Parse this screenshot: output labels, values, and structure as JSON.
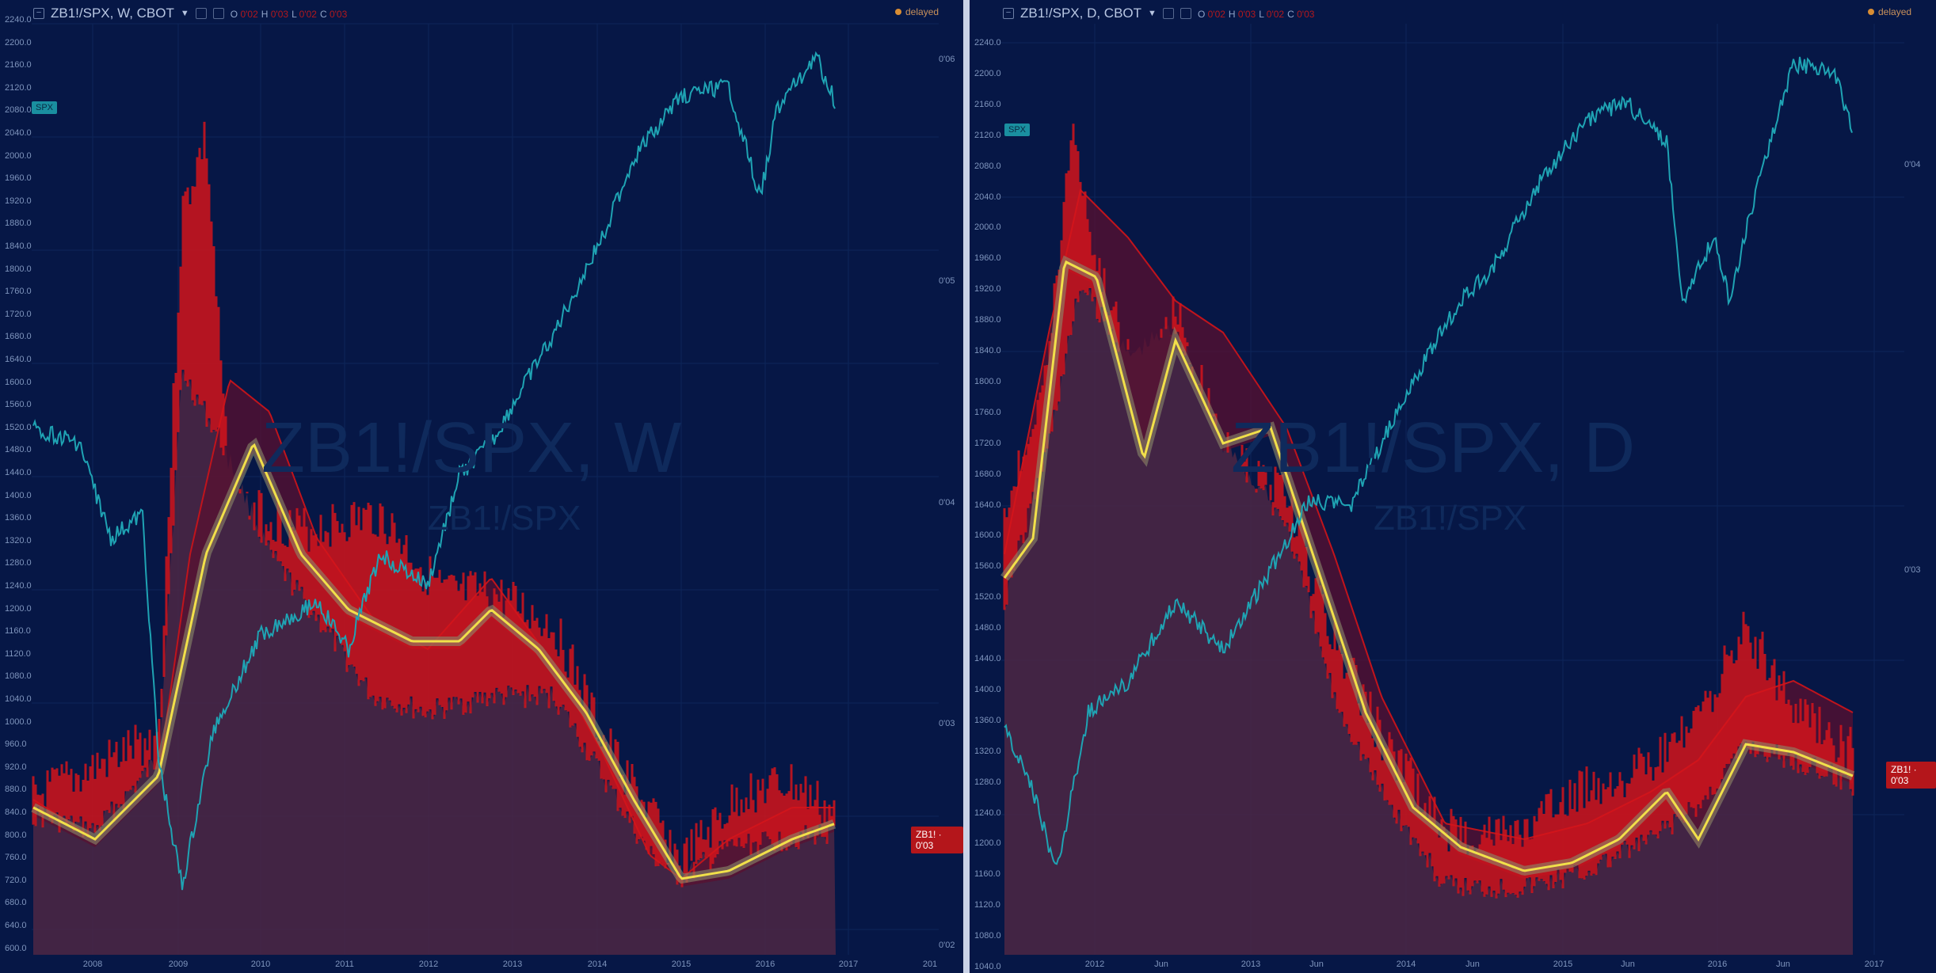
{
  "left": {
    "title": "ZB1!/SPX, W, CBOT",
    "ohlc": [
      {
        "key": "O",
        "value": "0'02"
      },
      {
        "key": "H",
        "value": "0'03"
      },
      {
        "key": "L",
        "value": "0'02"
      },
      {
        "key": "C",
        "value": "0'03"
      }
    ],
    "delayed": "delayed",
    "watermark": "ZB1!/SPX, W",
    "watermark_sub": "ZB1!/SPX",
    "spx_badge": "SPX",
    "zb_badge": "ZB1! · 0'03",
    "y_ticks": [
      "2240.0",
      "2200.0",
      "2160.0",
      "2120.0",
      "2080.0",
      "2040.0",
      "2000.0",
      "1960.0",
      "1920.0",
      "1880.0",
      "1840.0",
      "1800.0",
      "1760.0",
      "1720.0",
      "1680.0",
      "1640.0",
      "1600.0",
      "1560.0",
      "1520.0",
      "1480.0",
      "1440.0",
      "1400.0",
      "1360.0",
      "1320.0",
      "1280.0",
      "1240.0",
      "1200.0",
      "1160.0",
      "1120.0",
      "1080.0",
      "1040.0",
      "1000.0",
      "960.0",
      "920.0",
      "880.0",
      "840.0",
      "800.0",
      "760.0",
      "720.0",
      "680.0",
      "640.0",
      "600.0"
    ],
    "right_ticks": [
      "0'06",
      "0'05",
      "0'04",
      "0'03",
      "0'02"
    ],
    "x_ticks": [
      "2008",
      "2009",
      "2010",
      "2011",
      "2012",
      "2013",
      "2014",
      "2015",
      "2016",
      "2017",
      "201"
    ]
  },
  "right": {
    "title": "ZB1!/SPX, D, CBOT",
    "ohlc": [
      {
        "key": "O",
        "value": "0'02"
      },
      {
        "key": "H",
        "value": "0'03"
      },
      {
        "key": "L",
        "value": "0'02"
      },
      {
        "key": "C",
        "value": "0'03"
      }
    ],
    "delayed": "delayed",
    "watermark": "ZB1!/SPX, D",
    "watermark_sub": "ZB1!/SPX",
    "spx_badge": "SPX",
    "zb_badge": "ZB1! · 0'03",
    "y_ticks": [
      "2240.0",
      "2200.0",
      "2160.0",
      "2120.0",
      "2080.0",
      "2040.0",
      "2000.0",
      "1960.0",
      "1920.0",
      "1880.0",
      "1840.0",
      "1800.0",
      "1760.0",
      "1720.0",
      "1680.0",
      "1640.0",
      "1600.0",
      "1560.0",
      "1520.0",
      "1480.0",
      "1440.0",
      "1400.0",
      "1360.0",
      "1320.0",
      "1280.0",
      "1240.0",
      "1200.0",
      "1160.0",
      "1120.0",
      "1080.0",
      "1040.0"
    ],
    "right_ticks": [
      "0'04",
      "0'03"
    ],
    "x_ticks": [
      "2012",
      "Jun",
      "2013",
      "Jun",
      "2014",
      "Jun",
      "2015",
      "Jun",
      "2016",
      "Jun",
      "2017"
    ]
  },
  "colors": {
    "background": "#061746",
    "spx_line": "#1fa3b3",
    "ratio_fill": "#5a2a45",
    "ratio_spikes": "#d4141b",
    "ma_yellow": "#f1e04a",
    "band_red": "#c0141c",
    "green_fill": "#0f7a3c"
  },
  "chart_data": [
    {
      "type": "line",
      "title": "ZB1!/SPX, W, CBOT",
      "series": [
        {
          "name": "SPX",
          "x": [
            "2007.5",
            "2008",
            "2008.5",
            "2009",
            "2009.2",
            "2009.5",
            "2010",
            "2010.5",
            "2011",
            "2011.5",
            "2012",
            "2012.5",
            "2013",
            "2013.5",
            "2014",
            "2014.5",
            "2015",
            "2015.5",
            "2016",
            "2016.5",
            "2016.8"
          ],
          "values": [
            1500,
            1400,
            1280,
            900,
            700,
            950,
            1150,
            1100,
            1300,
            1200,
            1300,
            1400,
            1550,
            1700,
            1850,
            1950,
            2050,
            2100,
            1900,
            2100,
            2140
          ]
        }
      ],
      "ylim": [
        600,
        2240
      ]
    },
    {
      "type": "line",
      "title": "ZB1!/SPX, D, CBOT",
      "series": [
        {
          "name": "SPX",
          "x": [
            "2011.5",
            "2011.8",
            "2012",
            "2012.3",
            "2012.6",
            "2013",
            "2013.3",
            "2013.6",
            "2014",
            "2014.5",
            "2015",
            "2015.5",
            "2015.8",
            "2016",
            "2016.2",
            "2016.6",
            "2016.8"
          ],
          "values": [
            1280,
            1150,
            1300,
            1400,
            1400,
            1480,
            1560,
            1680,
            1800,
            1920,
            2050,
            2100,
            1900,
            1900,
            2000,
            2180,
            2120
          ]
        }
      ],
      "ylim": [
        1040,
        2240
      ]
    }
  ]
}
